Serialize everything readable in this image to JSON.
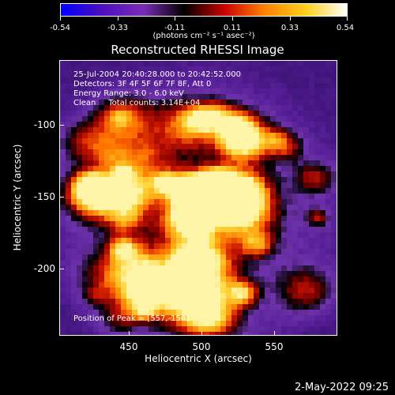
{
  "colorbar": {
    "ticks": [
      "-0.54",
      "-0.33",
      "-0.11",
      "0.11",
      "0.33",
      "0.54"
    ],
    "units": "(photons cm⁻² s⁻¹ asec⁻²)",
    "colors": [
      "#0000ff",
      "#4b0fbe",
      "#7a2cb6",
      "#000000",
      "#c80000",
      "#ff7f00",
      "#ffd21e",
      "#ffffff"
    ]
  },
  "title": "Reconstructed RHESSI Image",
  "annotations": {
    "line1": "25-Jul-2004 20:40:28.000 to 20:42:52.000",
    "line2": "Detectors: 3F 4F 5F 6F 7F 8F, Att 0",
    "line3": "Energy Range: 3.0 - 6.0 keV",
    "line4": "Clean     Total counts: 3.14E+04",
    "peak": "Position of Peak = [557,-156]"
  },
  "axes": {
    "xlabel": "Heliocentric X (arcsec)",
    "ylabel": "Heliocentric Y (arcsec)",
    "xticks": [
      "450",
      "500",
      "550"
    ],
    "yticks": [
      "-100",
      "-150",
      "-200"
    ]
  },
  "footer": "2-May-2022 09:25"
}
